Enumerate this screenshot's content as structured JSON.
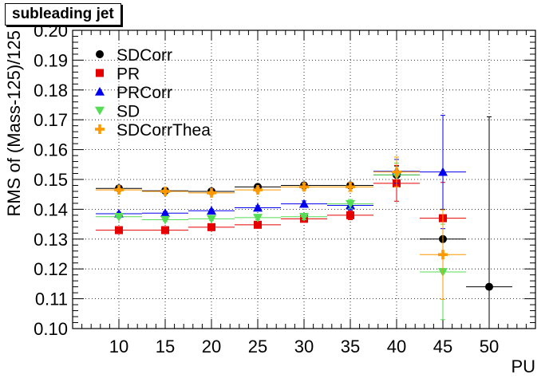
{
  "chart_data": {
    "type": "scatter",
    "title": "subleading jet",
    "xlabel": "PU",
    "ylabel": "RMS of (Mass-125)/125",
    "xlim": [
      5,
      55
    ],
    "ylim": [
      0.1,
      0.2
    ],
    "x_ticks": [
      "10",
      "15",
      "20",
      "25",
      "30",
      "35",
      "40",
      "45",
      "50"
    ],
    "y_ticks": [
      "0.10",
      "0.11",
      "0.12",
      "0.13",
      "0.14",
      "0.15",
      "0.16",
      "0.17",
      "0.18",
      "0.19",
      "0.20"
    ],
    "grid": true,
    "legend_position": "top-left",
    "x_half_width": 2.5,
    "series": [
      {
        "name": "SDCorr",
        "color": "#000000",
        "marker": "circle",
        "x": [
          10,
          15,
          20,
          25,
          30,
          35,
          40,
          45,
          50
        ],
        "y": [
          0.147,
          0.1462,
          0.146,
          0.1475,
          0.148,
          0.148,
          0.1515,
          0.13,
          0.114
        ],
        "yerr": [
          0.0005,
          0.0005,
          0.0005,
          0.0005,
          0.0008,
          0.001,
          0.003,
          0.01,
          0.057
        ]
      },
      {
        "name": "PR",
        "color": "#e60000",
        "marker": "square",
        "x": [
          10,
          15,
          20,
          25,
          30,
          35,
          40,
          45
        ],
        "y": [
          0.133,
          0.133,
          0.134,
          0.1348,
          0.1368,
          0.138,
          0.1487,
          0.137
        ],
        "yerr": [
          0.0005,
          0.0005,
          0.0005,
          0.0007,
          0.001,
          0.0015,
          0.006,
          0.012
        ]
      },
      {
        "name": "PRCorr",
        "color": "#0000ee",
        "marker": "triangle-up",
        "x": [
          10,
          15,
          20,
          25,
          30,
          35,
          40,
          45
        ],
        "y": [
          0.1385,
          0.1387,
          0.1395,
          0.1405,
          0.1418,
          0.1413,
          0.1527,
          0.1525
        ],
        "yerr": [
          0.0005,
          0.0005,
          0.0005,
          0.0007,
          0.001,
          0.0015,
          0.004,
          0.019
        ]
      },
      {
        "name": "SD",
        "color": "#55dd55",
        "marker": "triangle-down",
        "x": [
          10,
          15,
          20,
          25,
          30,
          35,
          40,
          45
        ],
        "y": [
          0.1375,
          0.1365,
          0.1368,
          0.1372,
          0.1375,
          0.1418,
          0.1515,
          0.119
        ],
        "yerr": [
          0.0005,
          0.0005,
          0.0005,
          0.0007,
          0.001,
          0.0015,
          0.004,
          0.016
        ]
      },
      {
        "name": "SDCorrThea",
        "color": "#ff9900",
        "marker": "cross",
        "x": [
          10,
          15,
          20,
          25,
          30,
          35,
          40,
          45
        ],
        "y": [
          0.1465,
          0.146,
          0.1455,
          0.1465,
          0.1475,
          0.1475,
          0.1525,
          0.1248
        ],
        "yerr": [
          0.0005,
          0.0005,
          0.0005,
          0.0007,
          0.001,
          0.0015,
          0.005,
          0.015
        ]
      }
    ]
  }
}
